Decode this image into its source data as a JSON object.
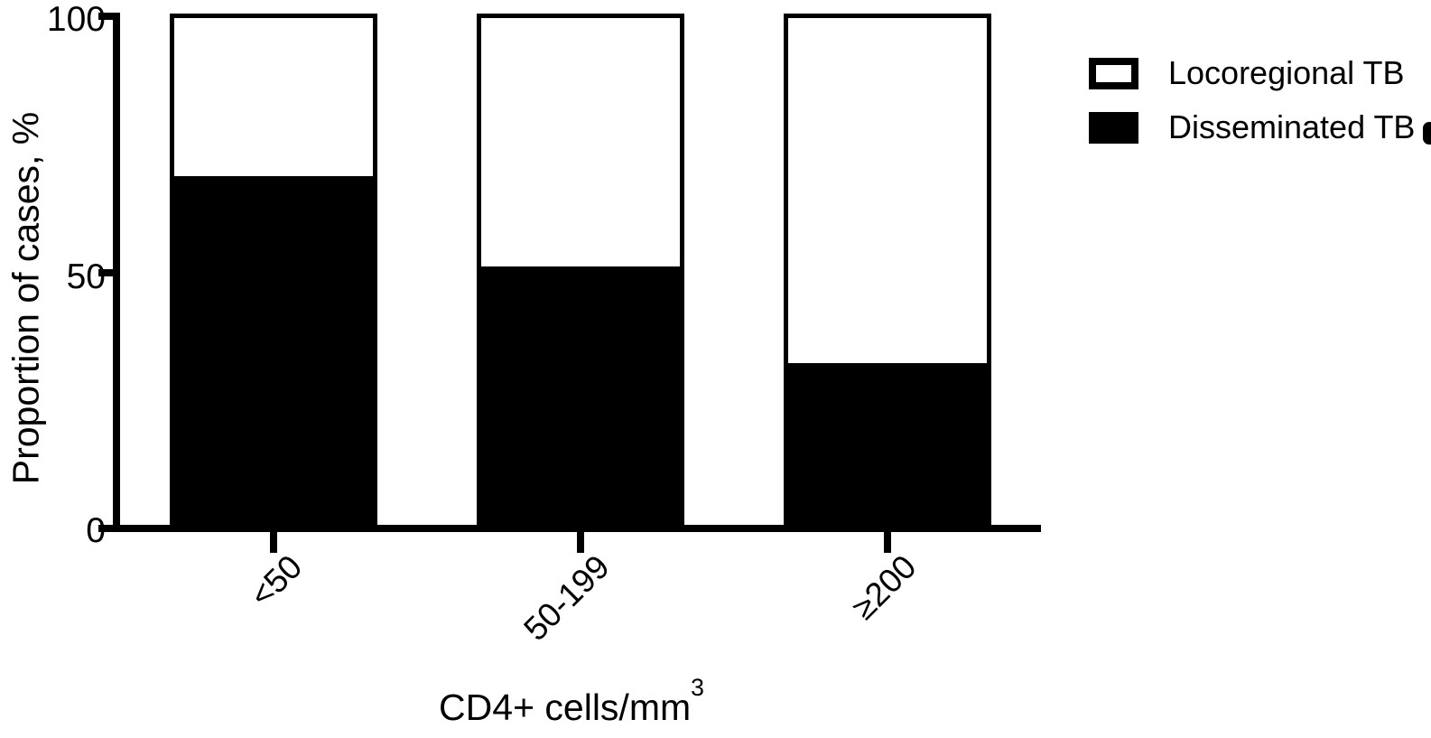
{
  "figure": {
    "background": "#ffffff",
    "ink": "#000000"
  },
  "chart_data": {
    "type": "bar",
    "stacked": true,
    "title": "",
    "xlabel": "CD4+ cells/mm",
    "xlabel_superscript": "3",
    "ylabel": "Proportion of cases, %",
    "categories": [
      "<50",
      "50-199",
      "≥200"
    ],
    "series": [
      {
        "name": "Disseminated TB",
        "color": "#000000",
        "values": [
          69,
          51,
          32
        ]
      },
      {
        "name": "Locoregional TB",
        "color": "#ffffff",
        "values": [
          31,
          49,
          68
        ]
      }
    ],
    "ylim": [
      0,
      100
    ],
    "yticks": [
      0,
      50,
      100
    ],
    "grid": false,
    "legend_position": "top-right",
    "bar_total": 100
  }
}
